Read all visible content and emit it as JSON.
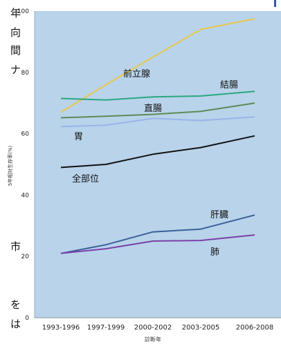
{
  "side_text": {
    "left_column": [
      "年",
      "向",
      "間",
      "ナ",
      "市",
      "を",
      "は"
    ]
  },
  "chart_data": {
    "type": "line",
    "title": "",
    "xlabel": "診断年",
    "ylabel": "5年相対生存率(%)",
    "categories": [
      "1993-1996",
      "1997-1999",
      "2000-2002",
      "2003-2005",
      "2006-2008"
    ],
    "ylim": [
      0,
      100
    ],
    "yticks": [
      0,
      20,
      40,
      60,
      80,
      100
    ],
    "grid": false,
    "legend": "inline labels",
    "background_color": "#b8d3ea",
    "series": [
      {
        "name": "前立腺",
        "values": [
          67,
          76,
          85,
          94,
          97.5
        ],
        "color": "#e8c84a"
      },
      {
        "name": "結腸",
        "values": [
          71.5,
          71,
          72,
          72.3,
          73.8
        ],
        "color": "#2aa87e"
      },
      {
        "name": "直腸",
        "values": [
          65.2,
          65.7,
          66.3,
          67.3,
          70
        ],
        "color": "#5e8a55"
      },
      {
        "name": "胃",
        "values": [
          62.3,
          62.8,
          65,
          64.3,
          65.5
        ],
        "color": "#9ab4e8"
      },
      {
        "name": "全部位",
        "values": [
          49,
          50,
          53.3,
          55.5,
          59.3
        ],
        "color": "#111111"
      },
      {
        "name": "肝臓",
        "values": [
          21,
          23.8,
          28,
          28.9,
          33.5
        ],
        "color": "#3a5f99"
      },
      {
        "name": "肺",
        "values": [
          21,
          22.5,
          25,
          25.2,
          27
        ],
        "color": "#7b3fa8"
      }
    ]
  }
}
